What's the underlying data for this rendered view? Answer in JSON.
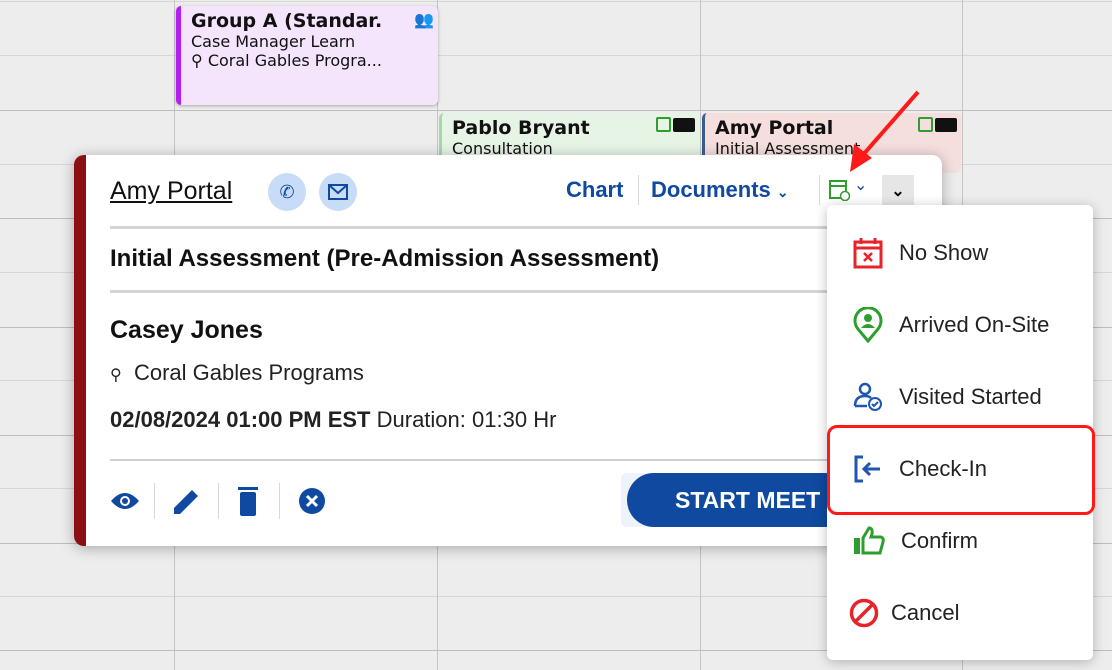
{
  "calendar": {
    "events": [
      {
        "title": "Group A (Standar.",
        "line1": "Case Manager Learn",
        "line2": "Coral Gables Progra...",
        "icon": "group-icon"
      },
      {
        "title": "Pablo Bryant",
        "line1": "Consultation",
        "icons": [
          "calendar-clock-icon",
          "video-icon"
        ]
      },
      {
        "title": "Amy Portal",
        "line1": "Initial Assessment",
        "icons": [
          "calendar-clock-icon",
          "video-icon"
        ]
      }
    ]
  },
  "popup": {
    "client_name": "Amy Portal",
    "chart_label": "Chart",
    "documents_label": "Documents",
    "appointment_type": "Initial Assessment (Pre-Admission Assessment)",
    "staff_name": "Casey Jones",
    "location": "Coral Gables Programs",
    "datetime": "02/08/2024 01:00 PM EST",
    "duration_label": "Duration:",
    "duration": "01:30 Hr",
    "start_button": "START MEET"
  },
  "status_menu": {
    "items": [
      {
        "label": "No Show",
        "icon": "calendar-x-icon",
        "color": "#e8232a"
      },
      {
        "label": "Arrived On-Site",
        "icon": "location-person-icon",
        "color": "#2e9e2e"
      },
      {
        "label": "Visited Started",
        "icon": "user-check-icon",
        "color": "#1f56b0"
      },
      {
        "label": "Check-In",
        "icon": "sign-in-icon",
        "color": "#1f56b0",
        "highlighted": true
      },
      {
        "label": "Confirm",
        "icon": "thumbs-up-icon",
        "color": "#2e9e2e"
      },
      {
        "label": "Cancel",
        "icon": "ban-icon",
        "color": "#e8232a"
      }
    ]
  },
  "colors": {
    "brand_blue": "#0f4aa0",
    "card_accent": "#8b1014",
    "annotation_red": "#ff1a1a"
  }
}
